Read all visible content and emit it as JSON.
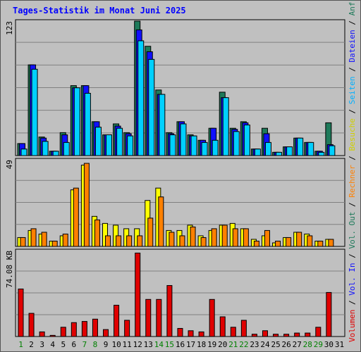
{
  "title": "Tages-Statistik im Monat Juni 2025",
  "colors": {
    "background": "#c0c0c0",
    "title": "#0000ff",
    "anfragen": "#1e7a5a",
    "dateien": "#1010ff",
    "seiten": "#00d0ff",
    "besuche": "#ffff00",
    "rechner": "#ff8000",
    "kb": "#e00000",
    "weekend_label": "#008000"
  },
  "right_legend_top": [
    {
      "text": "Anfragen",
      "color": "#1e7a5a"
    },
    {
      "text": " / ",
      "color": "#000000"
    },
    {
      "text": "Dateien",
      "color": "#1010ff"
    },
    {
      "text": " / ",
      "color": "#000000"
    },
    {
      "text": "Seiten",
      "color": "#00b0ff"
    },
    {
      "text": " / ",
      "color": "#000000"
    },
    {
      "text": "Besuche",
      "color": "#d0d000"
    },
    {
      "text": " / ",
      "color": "#000000"
    },
    {
      "text": "Rechner",
      "color": "#ff8000"
    },
    {
      "text": " / ",
      "color": "#000000"
    },
    {
      "text": "Vol. Out",
      "color": "#1e7a5a"
    },
    {
      "text": " / ",
      "color": "#000000"
    },
    {
      "text": "Vol. In",
      "color": "#1010ff"
    },
    {
      "text": " / ",
      "color": "#000000"
    },
    {
      "text": "Volumen",
      "color": "#e00000"
    }
  ],
  "chart_data": [
    {
      "type": "bar",
      "name_scale_label": "123",
      "ylim": [
        0,
        123
      ],
      "categories": [
        "1",
        "2",
        "3",
        "4",
        "5",
        "6",
        "7",
        "8",
        "9",
        "10",
        "11",
        "12",
        "13",
        "14",
        "15",
        "16",
        "17",
        "18",
        "19",
        "20",
        "21",
        "22",
        "23",
        "24",
        "25",
        "26",
        "27",
        "28",
        "29",
        "30",
        "31"
      ],
      "series": [
        {
          "name": "Anfragen",
          "values": [
            11,
            83,
            17,
            4,
            21,
            64,
            64,
            31,
            19,
            29,
            21,
            123,
            100,
            60,
            21,
            31,
            19,
            14,
            25,
            58,
            25,
            31,
            6,
            25,
            3,
            8,
            16,
            12,
            4,
            30,
            0
          ]
        },
        {
          "name": "Dateien",
          "values": [
            11,
            83,
            16,
            4,
            19,
            62,
            64,
            31,
            19,
            27,
            20,
            115,
            95,
            56,
            20,
            31,
            18,
            14,
            25,
            53,
            24,
            30,
            6,
            20,
            3,
            8,
            16,
            12,
            4,
            10,
            0
          ]
        },
        {
          "name": "Seiten",
          "values": [
            6,
            79,
            13,
            4,
            12,
            62,
            57,
            26,
            19,
            25,
            18,
            105,
            88,
            56,
            19,
            29,
            18,
            12,
            14,
            53,
            22,
            28,
            6,
            12,
            3,
            8,
            16,
            12,
            3,
            9,
            0
          ]
        }
      ]
    },
    {
      "type": "bar",
      "name_scale_label": "49",
      "ylim": [
        0,
        49
      ],
      "categories": [
        "1",
        "2",
        "3",
        "4",
        "5",
        "6",
        "7",
        "8",
        "9",
        "10",
        "11",
        "12",
        "13",
        "14",
        "15",
        "16",
        "17",
        "18",
        "19",
        "20",
        "21",
        "22",
        "23",
        "24",
        "25",
        "26",
        "27",
        "28",
        "29",
        "30",
        "31"
      ],
      "series": [
        {
          "name": "Besuche",
          "values": [
            5,
            9,
            7,
            3,
            6,
            32,
            46,
            17,
            13,
            12,
            10,
            10,
            26,
            33,
            9,
            9,
            12,
            6,
            9,
            12,
            13,
            10,
            4,
            6,
            2,
            5,
            8,
            7,
            3,
            4,
            0
          ]
        },
        {
          "name": "Rechner",
          "values": [
            5,
            10,
            8,
            3,
            7,
            33,
            47,
            15,
            6,
            6,
            6,
            6,
            16,
            28,
            8,
            6,
            11,
            5,
            10,
            12,
            10,
            10,
            3,
            9,
            3,
            5,
            8,
            6,
            3,
            4,
            0
          ]
        }
      ]
    },
    {
      "type": "bar",
      "name_scale_label": "74.08 KB",
      "ylim": [
        0,
        74.08
      ],
      "categories": [
        "1",
        "2",
        "3",
        "4",
        "5",
        "6",
        "7",
        "8",
        "9",
        "10",
        "11",
        "12",
        "13",
        "14",
        "15",
        "16",
        "17",
        "18",
        "19",
        "20",
        "21",
        "22",
        "23",
        "24",
        "25",
        "26",
        "27",
        "28",
        "29",
        "30",
        "31"
      ],
      "series": [
        {
          "name": "Volumen",
          "values": [
            41,
            20,
            4,
            1,
            8,
            12,
            13,
            15,
            6,
            27,
            14,
            72,
            32,
            32,
            44,
            7,
            5,
            4,
            32,
            17,
            8,
            14,
            2,
            5,
            2,
            2,
            3,
            3,
            8,
            38,
            0
          ]
        }
      ]
    }
  ],
  "x_labels": [
    {
      "text": "1",
      "weekend": true
    },
    {
      "text": "2",
      "weekend": false
    },
    {
      "text": "3",
      "weekend": false
    },
    {
      "text": "4",
      "weekend": false
    },
    {
      "text": "5",
      "weekend": false
    },
    {
      "text": "6",
      "weekend": false
    },
    {
      "text": "7",
      "weekend": true
    },
    {
      "text": "8",
      "weekend": true
    },
    {
      "text": "9",
      "weekend": false
    },
    {
      "text": "10",
      "weekend": false
    },
    {
      "text": "11",
      "weekend": false
    },
    {
      "text": "12",
      "weekend": false
    },
    {
      "text": "13",
      "weekend": false
    },
    {
      "text": "14",
      "weekend": true
    },
    {
      "text": "15",
      "weekend": true
    },
    {
      "text": "16",
      "weekend": false
    },
    {
      "text": "17",
      "weekend": false
    },
    {
      "text": "18",
      "weekend": false
    },
    {
      "text": "19",
      "weekend": false
    },
    {
      "text": "20",
      "weekend": false
    },
    {
      "text": "21",
      "weekend": true
    },
    {
      "text": "22",
      "weekend": true
    },
    {
      "text": "23",
      "weekend": false
    },
    {
      "text": "24",
      "weekend": false
    },
    {
      "text": "25",
      "weekend": false
    },
    {
      "text": "26",
      "weekend": false
    },
    {
      "text": "27",
      "weekend": false
    },
    {
      "text": "28",
      "weekend": true
    },
    {
      "text": "29",
      "weekend": true
    },
    {
      "text": "30",
      "weekend": false
    },
    {
      "text": "31",
      "weekend": false
    }
  ]
}
